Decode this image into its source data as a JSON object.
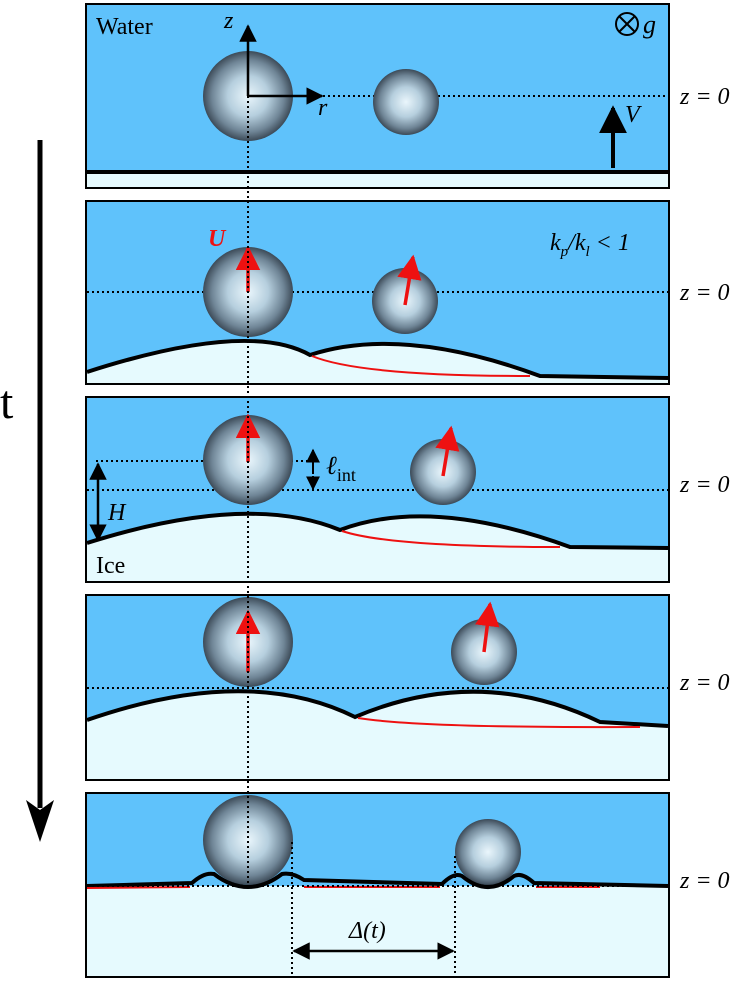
{
  "labels": {
    "water": "Water",
    "ice": "Ice",
    "time": "t",
    "gravity": "g",
    "z_axis": "z",
    "r_axis": "r",
    "velocity_V": "V",
    "velocity_U": "U",
    "height_H": "H",
    "ell": "ℓ",
    "ell_sub": "int",
    "delta": "Δ(t)",
    "z_zero": "z = 0",
    "ratio_k1": "k",
    "ratio_p": "p",
    "ratio_k2": "/k",
    "ratio_l": "l",
    "ratio_rel": " < 1"
  },
  "colors": {
    "water": "#5fc2fb",
    "ice": "#e6fafe",
    "front": "#000000",
    "velocity": "#ee1111",
    "particle_center": "#eaf6fc",
    "particle_edge": "#3c4a57"
  }
}
